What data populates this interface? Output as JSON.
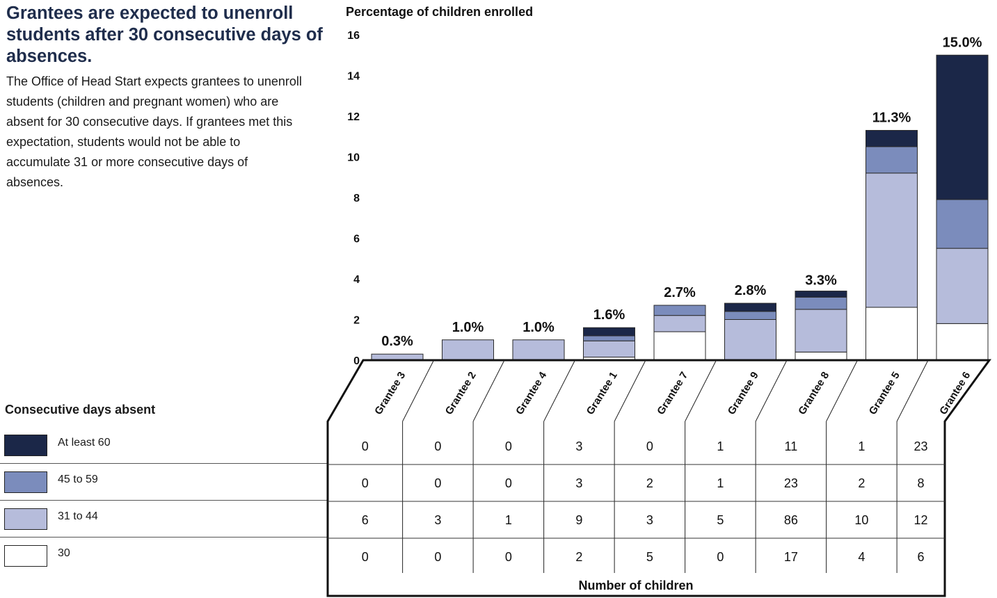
{
  "intro": {
    "headline": "Grantees are expected to unenroll students after 30 consecutive days of absences.",
    "body": "The Office of Head Start expects grantees to unenroll students (children and pregnant women) who are absent for 30 consecutive days. If grantees met this expectation, students would not be able to accumulate 31 or more consecutive days of absences."
  },
  "legend": {
    "title": "Consecutive days absent",
    "items": [
      {
        "label": "At least 60",
        "color": "#1b2748"
      },
      {
        "label": "45 to 59",
        "color": "#7b8cbc"
      },
      {
        "label": "31 to 44",
        "color": "#b6bcdb"
      },
      {
        "label": "30",
        "color": "#ffffff"
      }
    ]
  },
  "chart_data": {
    "type": "bar",
    "stacked": true,
    "ylabel": "Percentage of children enrolled",
    "xlabel": "Number of children",
    "ylim": [
      0,
      16
    ],
    "yticks": [
      0,
      2,
      4,
      6,
      8,
      10,
      12,
      14,
      16
    ],
    "grid": false,
    "categories": [
      "Grantee 3",
      "Grantee 2",
      "Grantee 4",
      "Grantee 1",
      "Grantee 7",
      "Grantee 9",
      "Grantee 8",
      "Grantee 5",
      "Grantee 6"
    ],
    "totals_labels": [
      "0.3%",
      "1.0%",
      "1.0%",
      "1.6%",
      "2.7%",
      "2.8%",
      "3.3%",
      "11.3%",
      "15.0%"
    ],
    "totals": [
      0.3,
      1.0,
      1.0,
      1.6,
      2.7,
      2.8,
      3.3,
      11.3,
      15.0
    ],
    "series": [
      {
        "name": "30",
        "color": "#ffffff",
        "values": [
          0,
          0,
          0,
          0.15,
          1.4,
          0,
          0.4,
          2.6,
          1.8
        ]
      },
      {
        "name": "31 to 44",
        "color": "#b6bcdb",
        "values": [
          0.3,
          1.0,
          1.0,
          0.8,
          0.8,
          2.0,
          2.1,
          6.6,
          3.7
        ]
      },
      {
        "name": "45 to 59",
        "color": "#7b8cbc",
        "values": [
          0,
          0,
          0,
          0.25,
          0.5,
          0.4,
          0.6,
          1.3,
          2.4
        ]
      },
      {
        "name": "At least 60",
        "color": "#1b2748",
        "values": [
          0,
          0,
          0,
          0.4,
          0,
          0.4,
          0.3,
          0.8,
          7.1
        ]
      }
    ],
    "table": {
      "row_labels": [
        "At least 60",
        "45 to 59",
        "31 to 44",
        "30"
      ],
      "rows": [
        [
          "0",
          "0",
          "0",
          "3",
          "0",
          "1",
          "11",
          "1",
          "23"
        ],
        [
          "0",
          "0",
          "0",
          "3",
          "2",
          "1",
          "23",
          "2",
          "8"
        ],
        [
          "6",
          "3",
          "1",
          "9",
          "3",
          "5",
          "86",
          "10",
          "12"
        ],
        [
          "0",
          "0",
          "0",
          "2",
          "5",
          "0",
          "17",
          "4",
          "6"
        ]
      ]
    }
  }
}
